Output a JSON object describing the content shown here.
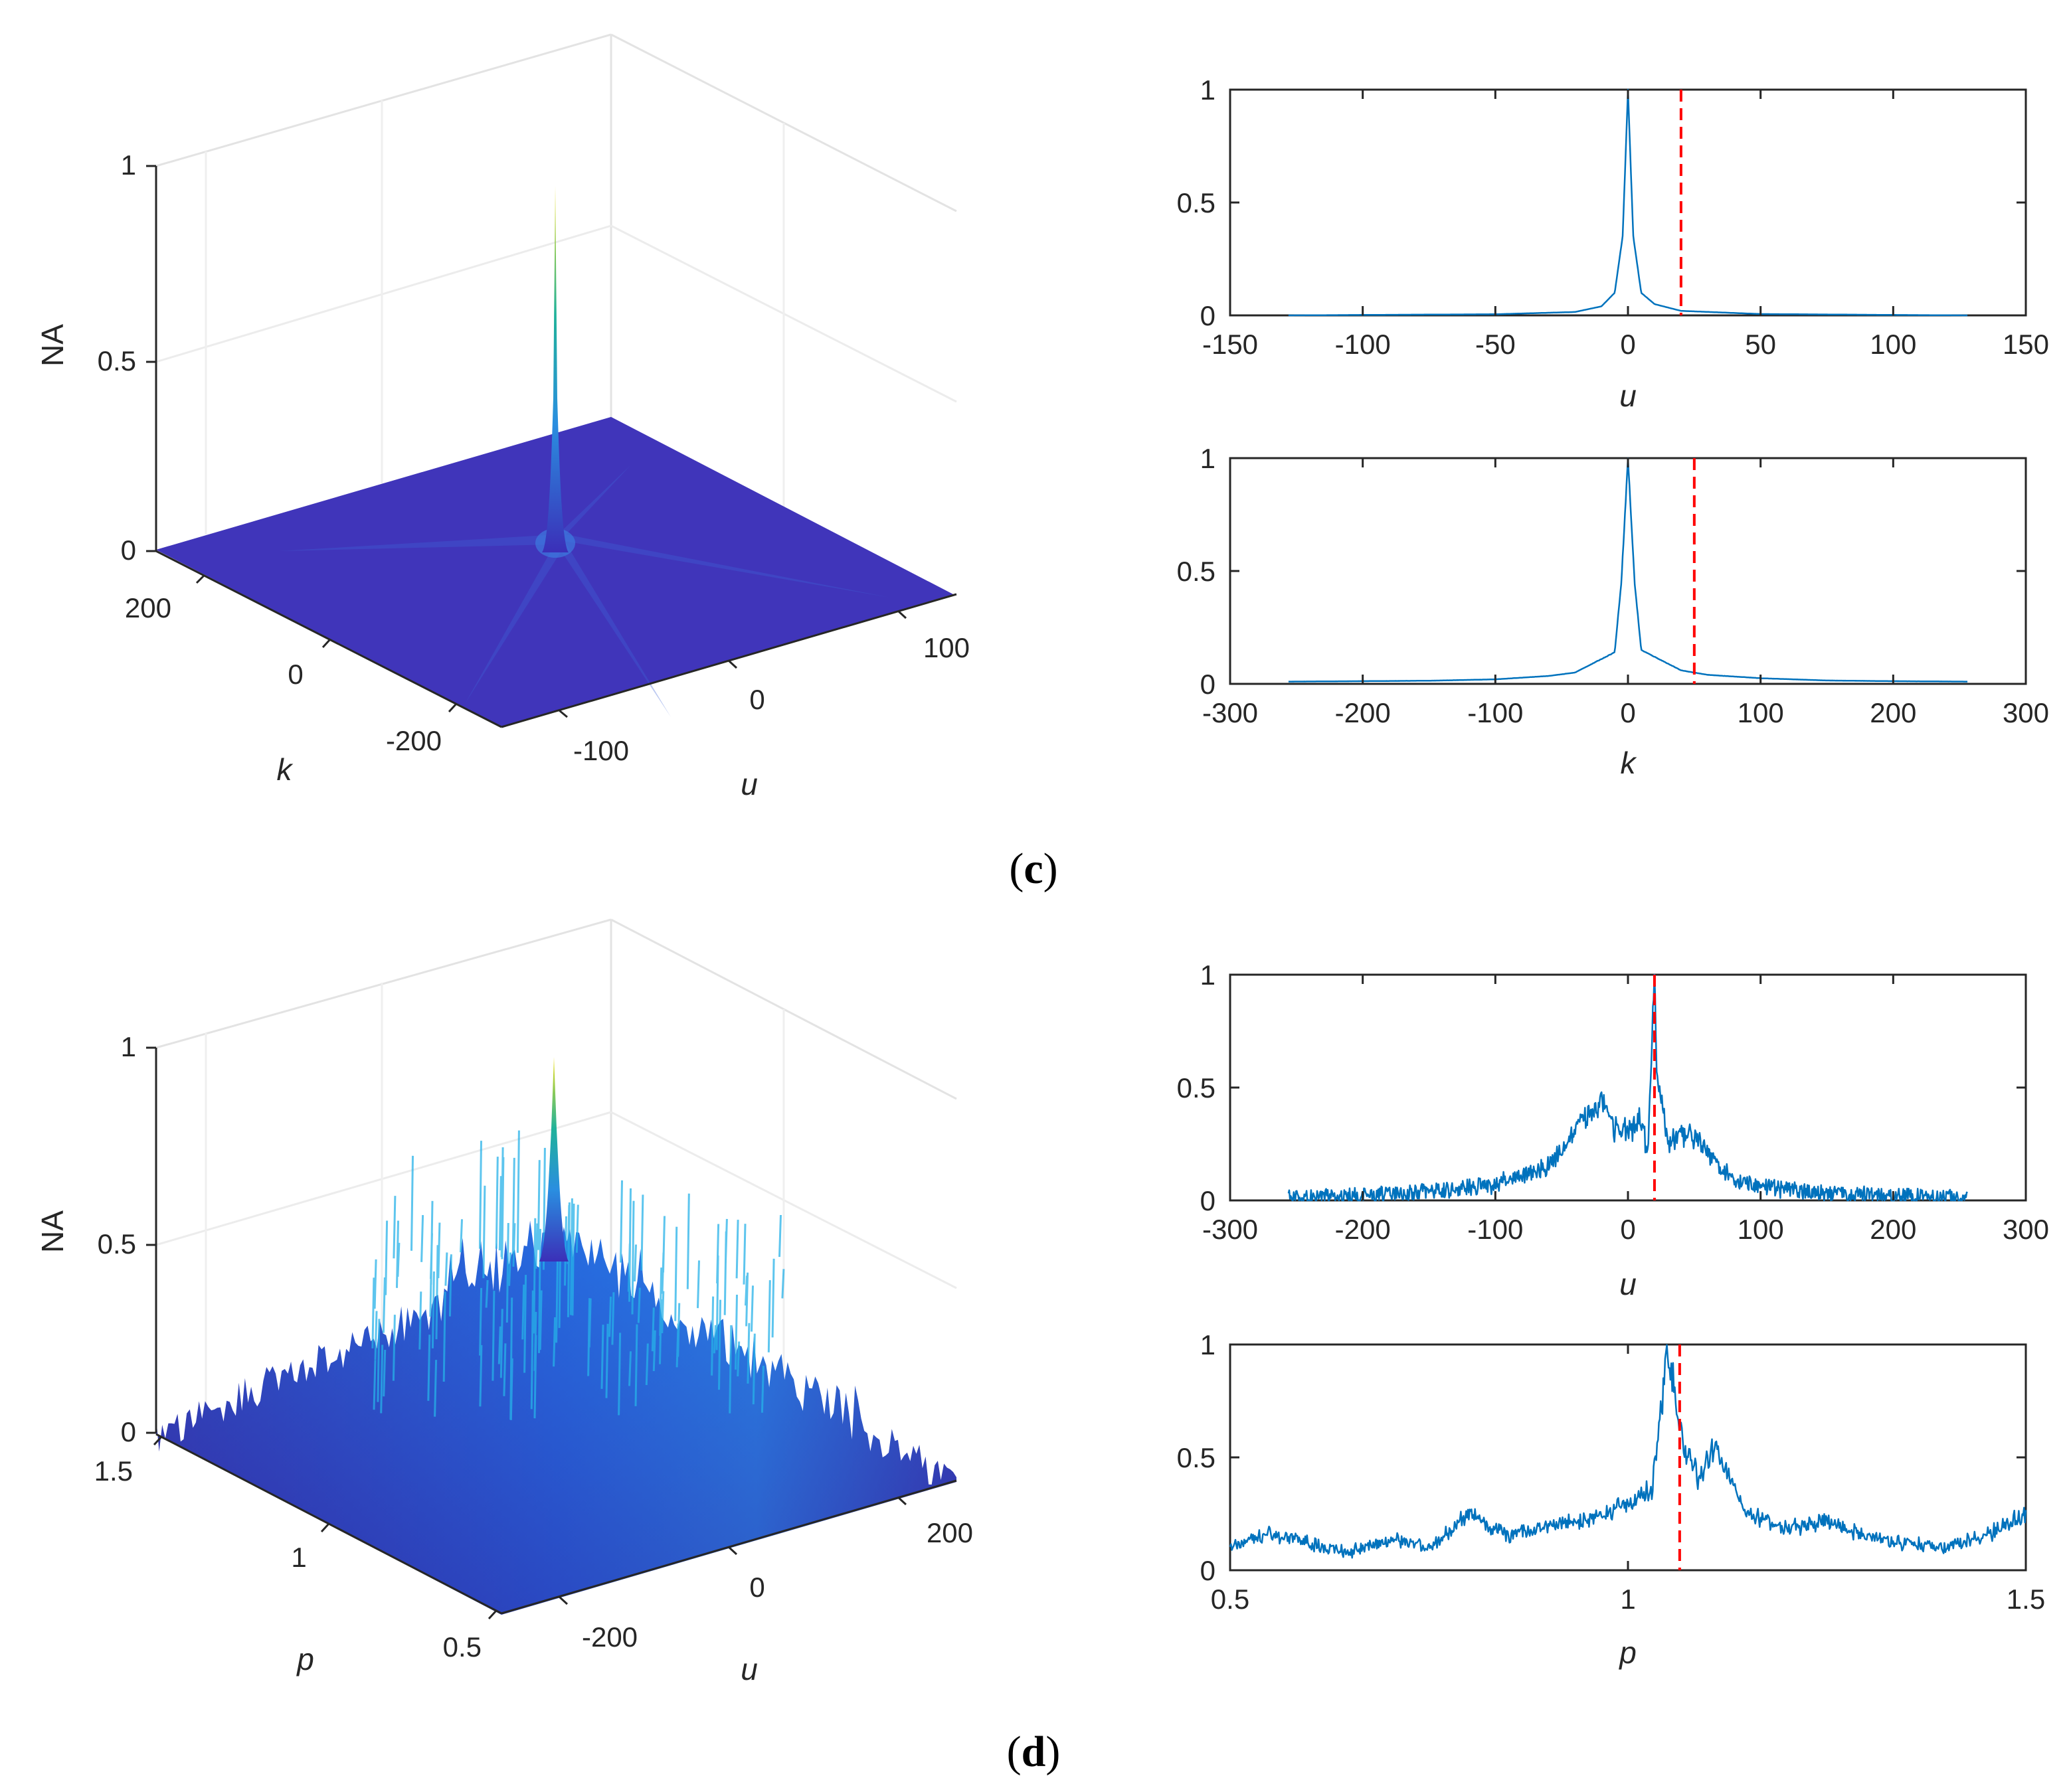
{
  "figure": {
    "label_c": "c",
    "label_d": "d"
  },
  "colors": {
    "line": "#0072bd",
    "marker": "#ff0000",
    "axis": "#262626",
    "grid": "#e6e6e6",
    "surface_low": "#3b2fb8",
    "surface_mid": "#1f78d8",
    "surface_peak": "#f2e11a"
  },
  "chart_data": [
    {
      "id": "c3d",
      "type": "surface",
      "title": "",
      "zlabel": "NA",
      "xlabel": "u",
      "ylabel": "k",
      "zticks": [
        "0",
        "0.5",
        "1"
      ],
      "xticks": [
        "-100",
        "0",
        "100"
      ],
      "yticks": [
        "-200",
        "0",
        "200"
      ],
      "u_range": [
        -128,
        128
      ],
      "k_range": [
        -256,
        256
      ],
      "zlim": [
        0,
        1
      ],
      "peak": {
        "u": 0,
        "k": 0,
        "value": 0.96
      },
      "description_series": [
        {
          "name": "NA(u,k)",
          "floor": 0.02
        }
      ]
    },
    {
      "id": "c_u",
      "type": "line",
      "xlabel": "u",
      "ylabel": "",
      "xlim": [
        -150,
        150
      ],
      "ylim": [
        0,
        1
      ],
      "xticks": [
        "-150",
        "-100",
        "-50",
        "0",
        "50",
        "100",
        "150"
      ],
      "yticks": [
        "0",
        "0.5",
        "1"
      ],
      "marker_x": 20,
      "series": [
        {
          "name": "NA",
          "x": [
            -128,
            -100,
            -50,
            -20,
            -10,
            -5,
            -2,
            0,
            2,
            5,
            10,
            20,
            50,
            100,
            128
          ],
          "values": [
            0.0,
            0.002,
            0.005,
            0.015,
            0.04,
            0.1,
            0.35,
            1.0,
            0.35,
            0.1,
            0.05,
            0.02,
            0.006,
            0.002,
            0.0
          ]
        }
      ]
    },
    {
      "id": "c_k",
      "type": "line",
      "xlabel": "k",
      "ylabel": "",
      "xlim": [
        -300,
        300
      ],
      "ylim": [
        0,
        1
      ],
      "xticks": [
        "-300",
        "-200",
        "-100",
        "0",
        "100",
        "200",
        "300"
      ],
      "yticks": [
        "0",
        "0.5",
        "1"
      ],
      "marker_x": 50,
      "series": [
        {
          "name": "NA",
          "x": [
            -256,
            -200,
            -150,
            -100,
            -60,
            -40,
            -20,
            -10,
            -5,
            0,
            5,
            10,
            20,
            40,
            60,
            100,
            150,
            200,
            256
          ],
          "values": [
            0.01,
            0.012,
            0.014,
            0.02,
            0.035,
            0.05,
            0.11,
            0.14,
            0.45,
            1.0,
            0.45,
            0.15,
            0.12,
            0.06,
            0.04,
            0.025,
            0.015,
            0.012,
            0.01
          ]
        }
      ]
    },
    {
      "id": "d3d",
      "type": "surface",
      "title": "",
      "zlabel": "NA",
      "xlabel": "u",
      "ylabel": "p",
      "zticks": [
        "0",
        "0.5",
        "1"
      ],
      "xticks": [
        "-200",
        "0",
        "200"
      ],
      "yticks": [
        "0.5",
        "1",
        "1.5"
      ],
      "u_range": [
        -256,
        256
      ],
      "p_range": [
        0.5,
        1.5
      ],
      "zlim": [
        0,
        1
      ],
      "peak": {
        "u": 0,
        "p": 1.05,
        "value": 0.93
      },
      "description_series": [
        {
          "name": "NA(u,p)",
          "floor": 0.05
        }
      ]
    },
    {
      "id": "d_u",
      "type": "line",
      "xlabel": "u",
      "ylabel": "",
      "xlim": [
        -300,
        300
      ],
      "ylim": [
        0,
        1
      ],
      "xticks": [
        "-300",
        "-200",
        "-100",
        "0",
        "100",
        "200",
        "300"
      ],
      "yticks": [
        "0",
        "0.5",
        "1"
      ],
      "marker_x": 20,
      "series": [
        {
          "name": "NA",
          "x": [
            -256,
            -200,
            -150,
            -100,
            -60,
            -30,
            -20,
            -10,
            0,
            10,
            15,
            20,
            22,
            30,
            50,
            80,
            100,
            150,
            200,
            256
          ],
          "values": [
            0.01,
            0.02,
            0.04,
            0.07,
            0.15,
            0.38,
            0.45,
            0.33,
            0.3,
            0.35,
            0.2,
            1.0,
            0.55,
            0.25,
            0.3,
            0.08,
            0.06,
            0.03,
            0.02,
            0.01
          ]
        }
      ]
    },
    {
      "id": "d_p",
      "type": "line",
      "xlabel": "p",
      "ylabel": "",
      "xlim": [
        0.5,
        1.5
      ],
      "ylim": [
        0,
        1
      ],
      "xticks": [
        "0.5",
        "1",
        "1.5"
      ],
      "yticks": [
        "0",
        "0.5",
        "1"
      ],
      "marker_x": 1.065,
      "series": [
        {
          "name": "NA",
          "x": [
            0.5,
            0.55,
            0.6,
            0.65,
            0.7,
            0.75,
            0.8,
            0.85,
            0.9,
            0.95,
            1.0,
            1.03,
            1.05,
            1.06,
            1.07,
            1.09,
            1.11,
            1.15,
            1.2,
            1.25,
            1.3,
            1.35,
            1.4,
            1.45,
            1.5
          ],
          "values": [
            0.1,
            0.16,
            0.12,
            0.08,
            0.14,
            0.1,
            0.25,
            0.15,
            0.2,
            0.22,
            0.3,
            0.35,
            0.98,
            0.75,
            0.55,
            0.4,
            0.55,
            0.25,
            0.18,
            0.22,
            0.15,
            0.12,
            0.1,
            0.15,
            0.25
          ]
        }
      ]
    }
  ]
}
